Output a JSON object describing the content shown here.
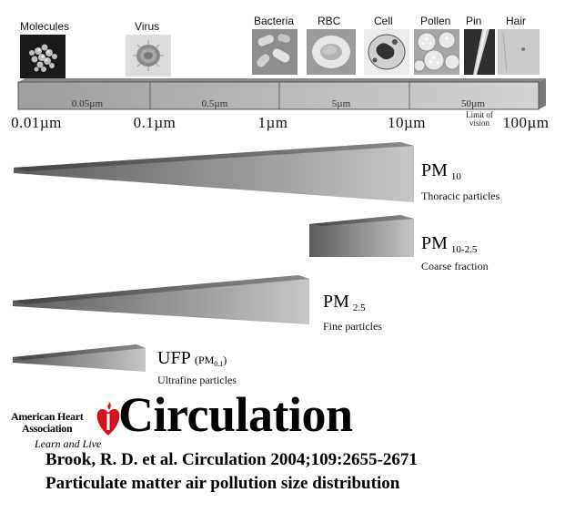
{
  "thumbnails": [
    {
      "label": "Molecules",
      "icon": "molecules-icon"
    },
    {
      "label": "Virus",
      "icon": "virus-icon"
    },
    {
      "label": "Bacteria",
      "icon": "bacteria-icon"
    },
    {
      "label": "RBC",
      "icon": "rbc-icon"
    },
    {
      "label": "Cell",
      "icon": "cell-icon"
    },
    {
      "label": "Pollen",
      "icon": "pollen-icon"
    },
    {
      "label": "Pin",
      "icon": "pin-icon"
    },
    {
      "label": "Hair",
      "icon": "hair-icon"
    }
  ],
  "scale_bar": {
    "segments": [
      "0.05µm",
      "0.5µm",
      "5µm",
      "50µm"
    ],
    "limit_note": "Limit of vision",
    "ticks": [
      "0.01µm",
      "0.1µm",
      "1µm",
      "10µm",
      "100µm"
    ]
  },
  "particles": [
    {
      "name": "PM",
      "subscript": "10",
      "description": "Thoracic particles"
    },
    {
      "name": "PM",
      "subscript": "10-2.5",
      "description": "Coarse fraction"
    },
    {
      "name": "PM",
      "subscript": "2.5",
      "description": "Fine particles"
    },
    {
      "name": "UFP",
      "subscript_prefix": "(PM",
      "subscript": "0.1",
      "subscript_suffix": ")",
      "description": "Ultrafine particles"
    }
  ],
  "logo": {
    "org_line1": "American Heart",
    "org_line2": "Association",
    "tagline": "Learn and Live",
    "journal": "Circulation"
  },
  "citation": {
    "line1": "Brook, R. D. et al. Circulation 2004;109:2655-2671",
    "line2": "Particulate matter air pollution size distribution"
  },
  "colors": {
    "heart_red": "#d4121b",
    "bar_gray": "#b8b8b8",
    "wedge_dark": "#6a6a6a",
    "wedge_light": "#cfcfcf"
  }
}
